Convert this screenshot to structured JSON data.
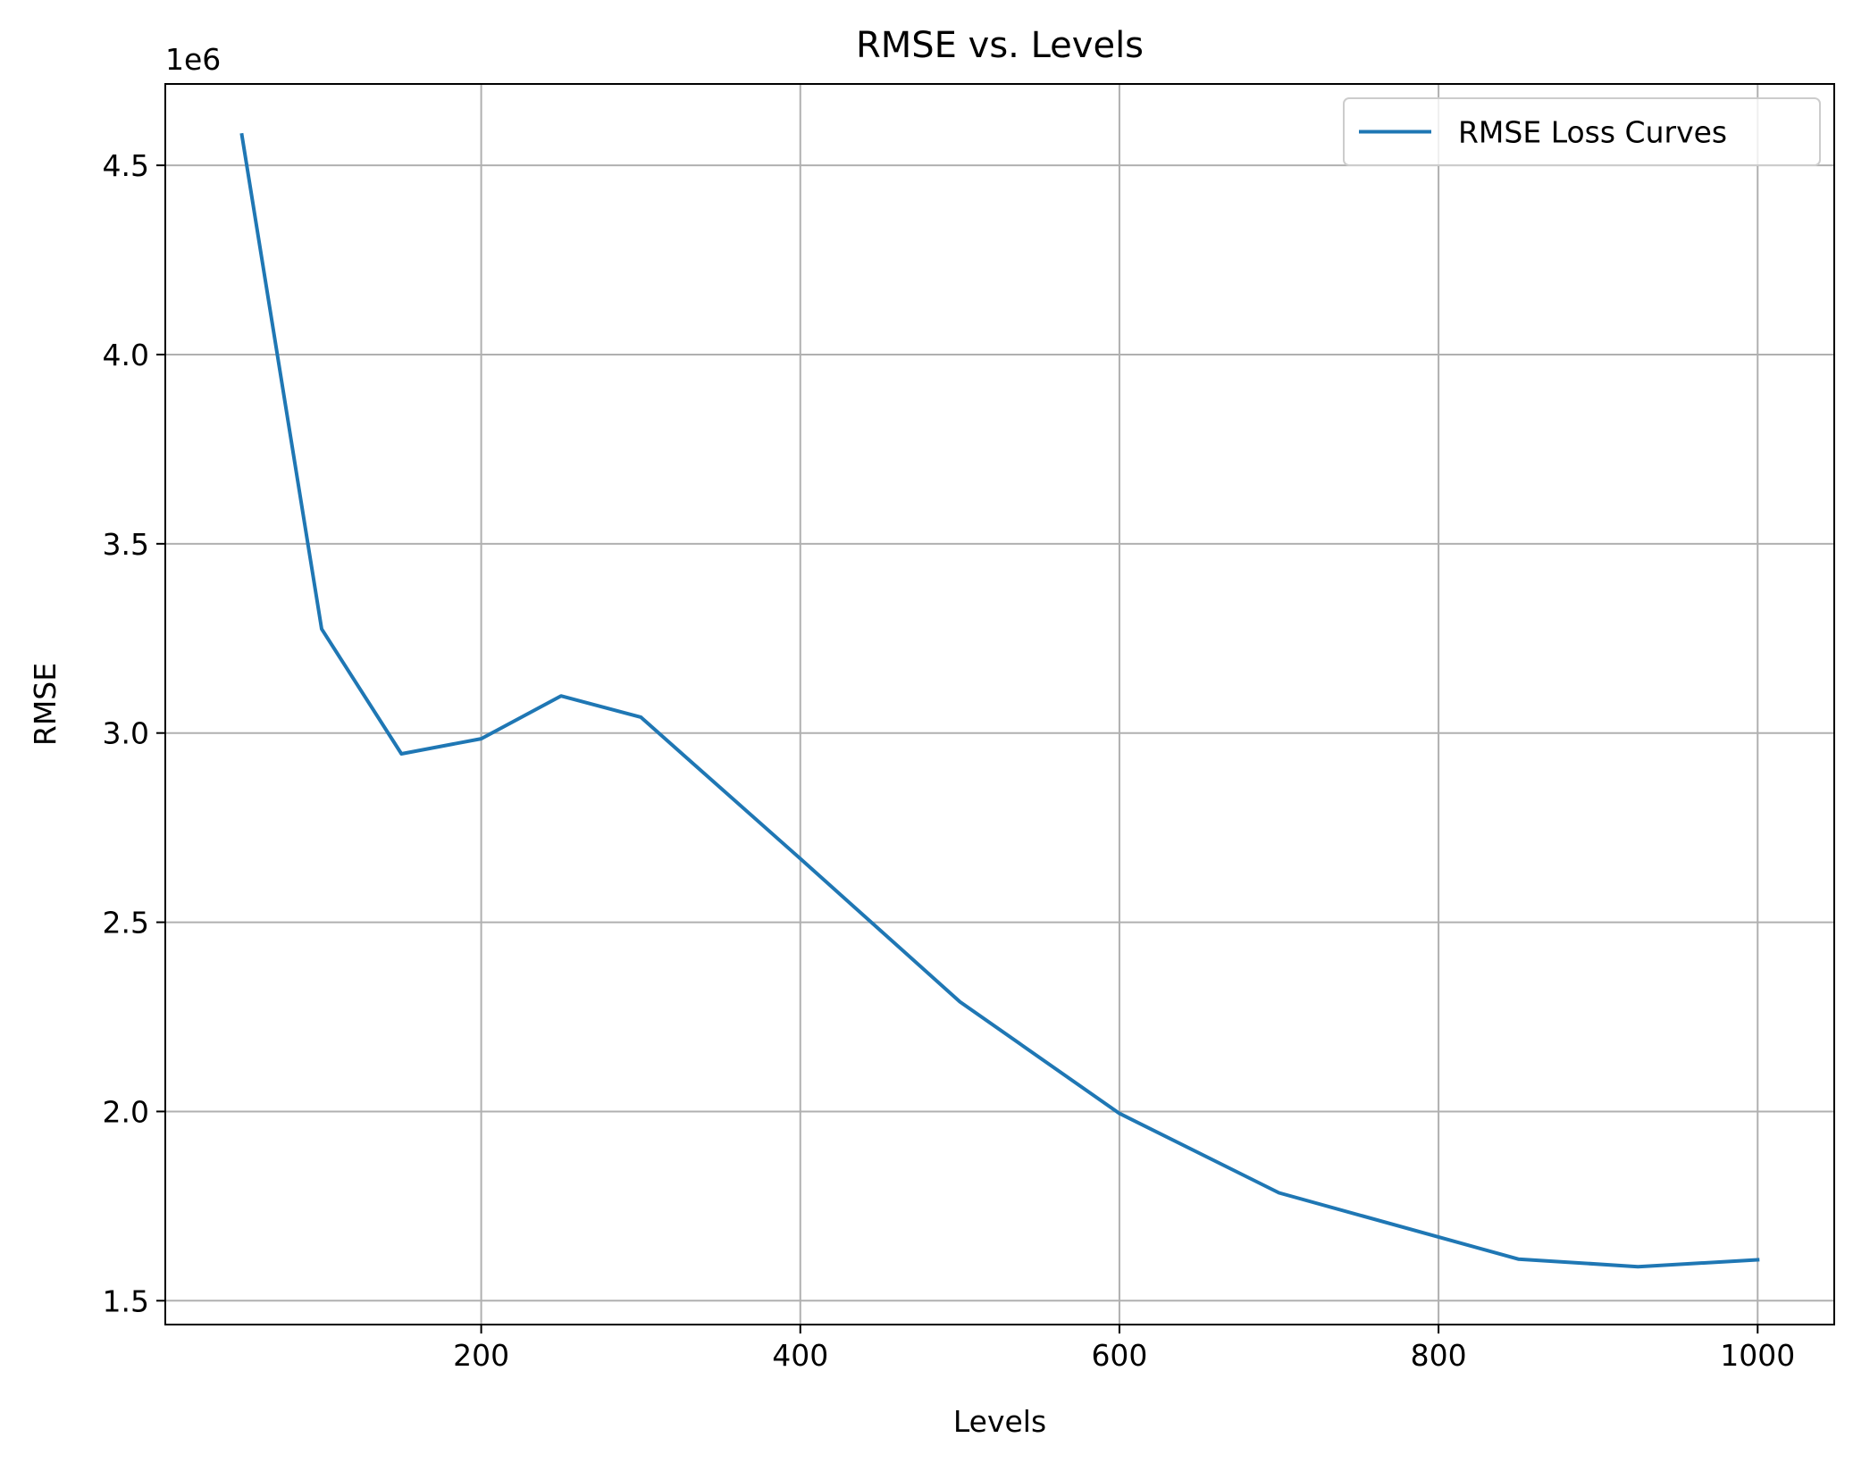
{
  "chart_data": {
    "type": "line",
    "title": "RMSE vs. Levels",
    "xlabel": "Levels",
    "ylabel": "RMSE",
    "y_offset_label": "1e6",
    "xlim": [
      2,
      1048
    ],
    "ylim": [
      1.437,
      4.715
    ],
    "xticks": [
      200,
      400,
      600,
      800,
      1000
    ],
    "xtick_labels": [
      "200",
      "400",
      "600",
      "800",
      "1000"
    ],
    "yticks": [
      1.5,
      2.0,
      2.5,
      3.0,
      3.5,
      4.0,
      4.5
    ],
    "ytick_labels": [
      "1.5",
      "2.0",
      "2.5",
      "3.0",
      "3.5",
      "4.0",
      "4.5"
    ],
    "grid": true,
    "legend_position": "top-right",
    "series": [
      {
        "name": "RMSE Loss Curves",
        "color": "#1f77b4",
        "x": [
          50,
          100,
          150,
          200,
          250,
          300,
          400,
          500,
          600,
          700,
          850,
          925,
          1000
        ],
        "y": [
          4.58,
          3.275,
          2.945,
          2.985,
          3.098,
          3.042,
          2.668,
          2.29,
          1.995,
          1.785,
          1.61,
          1.59,
          1.608
        ]
      }
    ]
  }
}
